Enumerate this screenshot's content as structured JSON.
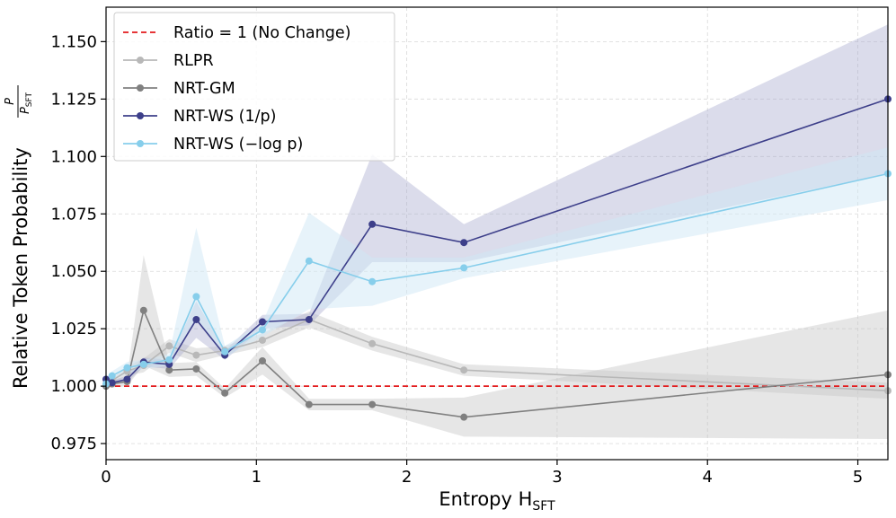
{
  "chart_data": {
    "type": "line",
    "xlabel": "Entropy H",
    "xlabel_sub": "SFT",
    "ylabel": "Relative Token Probability",
    "ylabel_frac_num": "P",
    "ylabel_frac_den": "P",
    "ylabel_frac_den_sub": "SFT",
    "xlim": [
      0,
      5.2
    ],
    "ylim": [
      0.968,
      1.165
    ],
    "xticks": [
      0,
      1,
      2,
      3,
      4,
      5
    ],
    "yticks": [
      0.975,
      1.0,
      1.025,
      1.05,
      1.075,
      1.1,
      1.125,
      1.15
    ],
    "xtick_labels": [
      "0",
      "1",
      "2",
      "3",
      "4",
      "5"
    ],
    "ytick_labels": [
      "0.975",
      "1.000",
      "1.025",
      "1.050",
      "1.075",
      "1.100",
      "1.125",
      "1.150"
    ],
    "grid": true,
    "legend_position": "top-left",
    "reference_line": {
      "name": "Ratio = 1 (No Change)",
      "y": 1.0,
      "color": "#e31a1c"
    },
    "series": [
      {
        "name": "RLPR",
        "color": "#b8b8b8",
        "band_color": "#c8c8c8",
        "band_opacity": 0.45,
        "x": [
          0.0,
          0.04,
          0.14,
          0.25,
          0.42,
          0.6,
          0.79,
          1.04,
          1.35,
          1.77,
          2.38,
          5.2
        ],
        "y": [
          1.0,
          1.0025,
          1.0065,
          1.009,
          1.0175,
          1.0135,
          1.0155,
          1.02,
          1.029,
          1.0185,
          1.007,
          0.998
        ],
        "lower": [
          0.9995,
          1.0015,
          1.0045,
          1.006,
          1.0145,
          1.0105,
          1.0135,
          1.017,
          1.0255,
          1.0155,
          1.0045,
          0.9945
        ],
        "upper": [
          1.0005,
          1.0035,
          1.0085,
          1.012,
          1.0205,
          1.0165,
          1.0175,
          1.023,
          1.0325,
          1.0215,
          1.0095,
          1.0015
        ]
      },
      {
        "name": "NRT-GM",
        "color": "#808080",
        "band_color": "#c8c8c8",
        "band_opacity": 0.45,
        "x": [
          0.0,
          0.04,
          0.14,
          0.25,
          0.42,
          0.6,
          0.79,
          1.04,
          1.35,
          1.77,
          2.38,
          5.2
        ],
        "y": [
          1.0,
          1.001,
          1.002,
          1.033,
          1.007,
          1.0075,
          0.997,
          1.011,
          0.992,
          0.992,
          0.9865,
          1.005
        ],
        "lower": [
          0.999,
          0.9995,
          1.0,
          1.009,
          1.004,
          1.0045,
          0.995,
          1.005,
          0.9895,
          0.9895,
          0.978,
          0.977
        ],
        "upper": [
          1.001,
          1.0025,
          1.004,
          1.057,
          1.01,
          1.0105,
          0.999,
          1.017,
          0.9945,
          0.9945,
          0.995,
          1.033
        ]
      },
      {
        "name": "NRT-WS (1/p)",
        "color": "#3d3f8a",
        "band_color": "#a6a8cc",
        "band_opacity": 0.4,
        "x": [
          0.0,
          0.04,
          0.14,
          0.25,
          0.42,
          0.6,
          0.79,
          1.04,
          1.35,
          1.77,
          2.38,
          5.2
        ],
        "y": [
          1.003,
          1.0015,
          1.003,
          1.0105,
          1.0095,
          1.029,
          1.0135,
          1.028,
          1.029,
          1.0705,
          1.0625,
          1.125
        ],
        "lower": [
          1.0015,
          1.0005,
          1.0015,
          1.0085,
          1.0075,
          1.021,
          1.0115,
          1.025,
          1.0265,
          1.054,
          1.054,
          1.0925
        ],
        "upper": [
          1.0045,
          1.0025,
          1.0045,
          1.0125,
          1.0115,
          1.037,
          1.0155,
          1.031,
          1.0315,
          1.101,
          1.0705,
          1.1575
        ]
      },
      {
        "name": "NRT-WS (−log p)",
        "color": "#87ceeb",
        "band_color": "#cfe8f5",
        "band_opacity": 0.5,
        "x": [
          0.0,
          0.04,
          0.14,
          0.25,
          0.42,
          0.6,
          0.79,
          1.04,
          1.35,
          1.77,
          2.38,
          5.2
        ],
        "y": [
          1.001,
          1.0045,
          1.008,
          1.0095,
          1.0115,
          1.039,
          1.015,
          1.0245,
          1.0545,
          1.0455,
          1.0515,
          1.0925
        ],
        "lower": [
          1.0,
          1.0025,
          1.0055,
          1.0075,
          1.009,
          1.029,
          1.0125,
          1.0215,
          1.0335,
          1.035,
          1.047,
          1.081
        ],
        "upper": [
          1.002,
          1.0065,
          1.0105,
          1.0115,
          1.014,
          1.069,
          1.0175,
          1.0275,
          1.0755,
          1.056,
          1.056,
          1.104
        ]
      }
    ]
  }
}
